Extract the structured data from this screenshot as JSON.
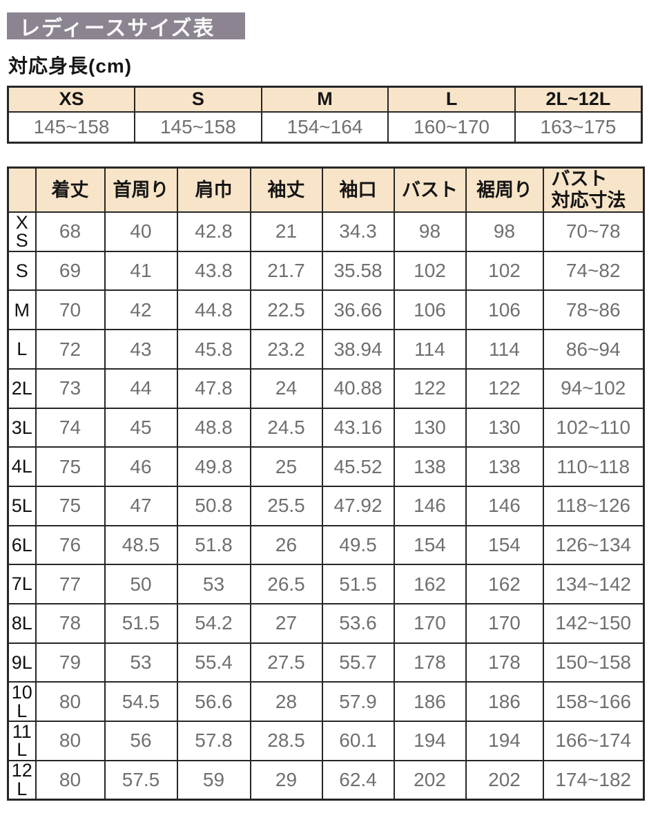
{
  "title": "レディースサイズ表",
  "height_section": {
    "label": "対応身長(cm)",
    "columns": [
      "XS",
      "S",
      "M",
      "L",
      "2L~12L"
    ],
    "values": [
      "145~158",
      "145~158",
      "154~164",
      "160~170",
      "163~175"
    ]
  },
  "size_table": {
    "corner": "",
    "columns": [
      "着丈",
      "首周り",
      "肩巾",
      "袖丈",
      "袖口",
      "バスト",
      "裾周り",
      "バスト\n対応寸法"
    ],
    "rows": [
      {
        "size": "XS",
        "values": [
          "68",
          "40",
          "42.8",
          "21",
          "34.3",
          "98",
          "98",
          "70~78"
        ]
      },
      {
        "size": "S",
        "values": [
          "69",
          "41",
          "43.8",
          "21.7",
          "35.58",
          "102",
          "102",
          "74~82"
        ]
      },
      {
        "size": "M",
        "values": [
          "70",
          "42",
          "44.8",
          "22.5",
          "36.66",
          "106",
          "106",
          "78~86"
        ]
      },
      {
        "size": "L",
        "values": [
          "72",
          "43",
          "45.8",
          "23.2",
          "38.94",
          "114",
          "114",
          "86~94"
        ]
      },
      {
        "size": "2L",
        "values": [
          "73",
          "44",
          "47.8",
          "24",
          "40.88",
          "122",
          "122",
          "94~102"
        ]
      },
      {
        "size": "3L",
        "values": [
          "74",
          "45",
          "48.8",
          "24.5",
          "43.16",
          "130",
          "130",
          "102~110"
        ]
      },
      {
        "size": "4L",
        "values": [
          "75",
          "46",
          "49.8",
          "25",
          "45.52",
          "138",
          "138",
          "110~118"
        ]
      },
      {
        "size": "5L",
        "values": [
          "75",
          "47",
          "50.8",
          "25.5",
          "47.92",
          "146",
          "146",
          "118~126"
        ]
      },
      {
        "size": "6L",
        "values": [
          "76",
          "48.5",
          "51.8",
          "26",
          "49.5",
          "154",
          "154",
          "126~134"
        ]
      },
      {
        "size": "7L",
        "values": [
          "77",
          "50",
          "53",
          "26.5",
          "51.5",
          "162",
          "162",
          "134~142"
        ]
      },
      {
        "size": "8L",
        "values": [
          "78",
          "51.5",
          "54.2",
          "27",
          "53.6",
          "170",
          "170",
          "142~150"
        ]
      },
      {
        "size": "9L",
        "values": [
          "79",
          "53",
          "55.4",
          "27.5",
          "55.7",
          "178",
          "178",
          "150~158"
        ]
      },
      {
        "size": "10L",
        "values": [
          "80",
          "54.5",
          "56.6",
          "28",
          "57.9",
          "186",
          "186",
          "158~166"
        ]
      },
      {
        "size": "11L",
        "values": [
          "80",
          "56",
          "57.8",
          "28.5",
          "60.1",
          "194",
          "194",
          "166~174"
        ]
      },
      {
        "size": "12L",
        "values": [
          "80",
          "57.5",
          "59",
          "29",
          "62.4",
          "202",
          "202",
          "174~182"
        ]
      }
    ]
  },
  "colors": {
    "title_background": "#8c8591",
    "header_background": "#f8e4c8",
    "border": "#262626",
    "data_text": "#6f6f6f",
    "heading_text": "#151515"
  }
}
